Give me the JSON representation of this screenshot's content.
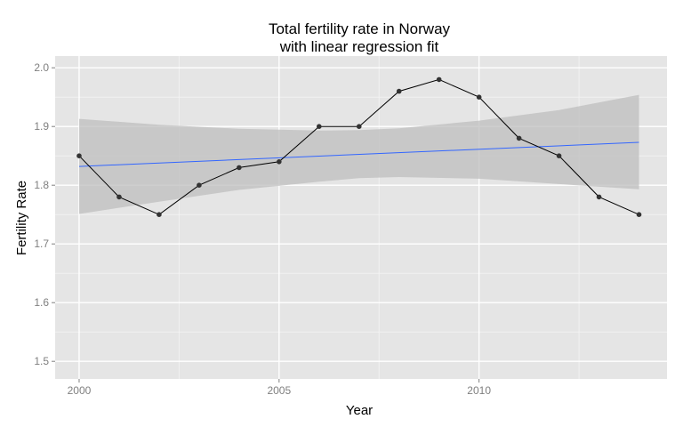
{
  "chart_data": {
    "type": "line",
    "title_lines": [
      "Total fertility rate in Norway",
      "with linear regression fit"
    ],
    "xlabel": "Year",
    "ylabel": "Fertility Rate",
    "x_ticks": [
      "2000",
      "2005",
      "2010"
    ],
    "y_ticks": [
      "1.5",
      "1.6",
      "1.7",
      "1.8",
      "1.9",
      "2.0"
    ],
    "xlim": [
      1999.4,
      2014.7
    ],
    "ylim": [
      1.47,
      2.02
    ],
    "grid": true,
    "series": [
      {
        "x": [
          2000,
          2001,
          2002,
          2003,
          2004,
          2005,
          2006,
          2007,
          2008,
          2009,
          2010,
          2011,
          2012,
          2013,
          2014
        ],
        "values": [
          1.85,
          1.78,
          1.75,
          1.8,
          1.83,
          1.84,
          1.9,
          1.9,
          1.96,
          1.98,
          1.95,
          1.88,
          1.85,
          1.78,
          1.75
        ],
        "color": "#000000"
      }
    ],
    "regression": {
      "x": [
        2000,
        2014
      ],
      "values": [
        1.832,
        1.873
      ],
      "color": "#3366ff",
      "confidence_band": {
        "x": [
          2000,
          2002,
          2004,
          2006,
          2007,
          2008,
          2010,
          2012,
          2014
        ],
        "upper": [
          1.913,
          1.903,
          1.896,
          1.893,
          1.894,
          1.897,
          1.91,
          1.928,
          1.954
        ],
        "lower": [
          1.751,
          1.772,
          1.792,
          1.806,
          1.812,
          1.814,
          1.811,
          1.802,
          1.793
        ]
      }
    },
    "colors": {
      "panel": "#e5e5e5",
      "grid_major": "#ffffff",
      "grid_minor": "#f2f2f2",
      "band": "#bdbdbd",
      "point": "#333333"
    }
  }
}
